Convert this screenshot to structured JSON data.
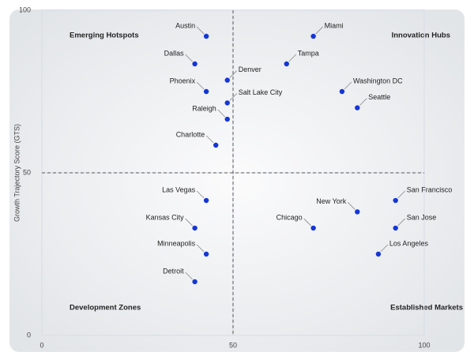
{
  "chart_data": {
    "type": "scatter",
    "y_label": "Growth Trajectory Score (GTS)",
    "xlim": [
      0,
      100
    ],
    "ylim": [
      0,
      100
    ],
    "xticks": [
      0,
      50,
      100
    ],
    "yticks": [
      0,
      50,
      100
    ],
    "grid": true,
    "reference_lines": {
      "x": 50,
      "y": 50
    },
    "quadrants": {
      "top_left": "Emerging Hotspots",
      "top_right": "Innovation Hubs",
      "bottom_left": "Development Zones",
      "bottom_right": "Established Markets"
    },
    "color": "#1536d6",
    "points": [
      {
        "name": "Austin",
        "x": 43,
        "y": 92,
        "label_position": "left"
      },
      {
        "name": "Miami",
        "x": 71,
        "y": 92,
        "label_position": "right"
      },
      {
        "name": "Dallas",
        "x": 40,
        "y": 83.5,
        "label_position": "left"
      },
      {
        "name": "Tampa",
        "x": 64,
        "y": 83.5,
        "label_position": "right"
      },
      {
        "name": "Denver",
        "x": 48.5,
        "y": 78.5,
        "label_position": "right"
      },
      {
        "name": "Phoenix",
        "x": 43,
        "y": 75,
        "label_position": "left"
      },
      {
        "name": "Washington DC",
        "x": 78.5,
        "y": 75,
        "label_position": "right"
      },
      {
        "name": "Salt Lake City",
        "x": 48.5,
        "y": 71.5,
        "label_position": "right"
      },
      {
        "name": "Seattle",
        "x": 82.5,
        "y": 70,
        "label_position": "right"
      },
      {
        "name": "Raleigh",
        "x": 48.5,
        "y": 66.5,
        "label_position": "left"
      },
      {
        "name": "Charlotte",
        "x": 45.5,
        "y": 58.5,
        "label_position": "left"
      },
      {
        "name": "Las Vegas",
        "x": 43,
        "y": 41.5,
        "label_position": "left"
      },
      {
        "name": "San Francisco",
        "x": 92.5,
        "y": 41.5,
        "label_position": "right"
      },
      {
        "name": "New York",
        "x": 82.5,
        "y": 38,
        "label_position": "left"
      },
      {
        "name": "Kansas City",
        "x": 40,
        "y": 33,
        "label_position": "left"
      },
      {
        "name": "Chicago",
        "x": 71,
        "y": 33,
        "label_position": "left"
      },
      {
        "name": "San Jose",
        "x": 92.5,
        "y": 33,
        "label_position": "right"
      },
      {
        "name": "Los Angeles",
        "x": 88,
        "y": 25,
        "label_position": "right"
      },
      {
        "name": "Minneapolis",
        "x": 43,
        "y": 25,
        "label_position": "left"
      },
      {
        "name": "Detroit",
        "x": 40,
        "y": 16.5,
        "label_position": "left"
      }
    ]
  }
}
